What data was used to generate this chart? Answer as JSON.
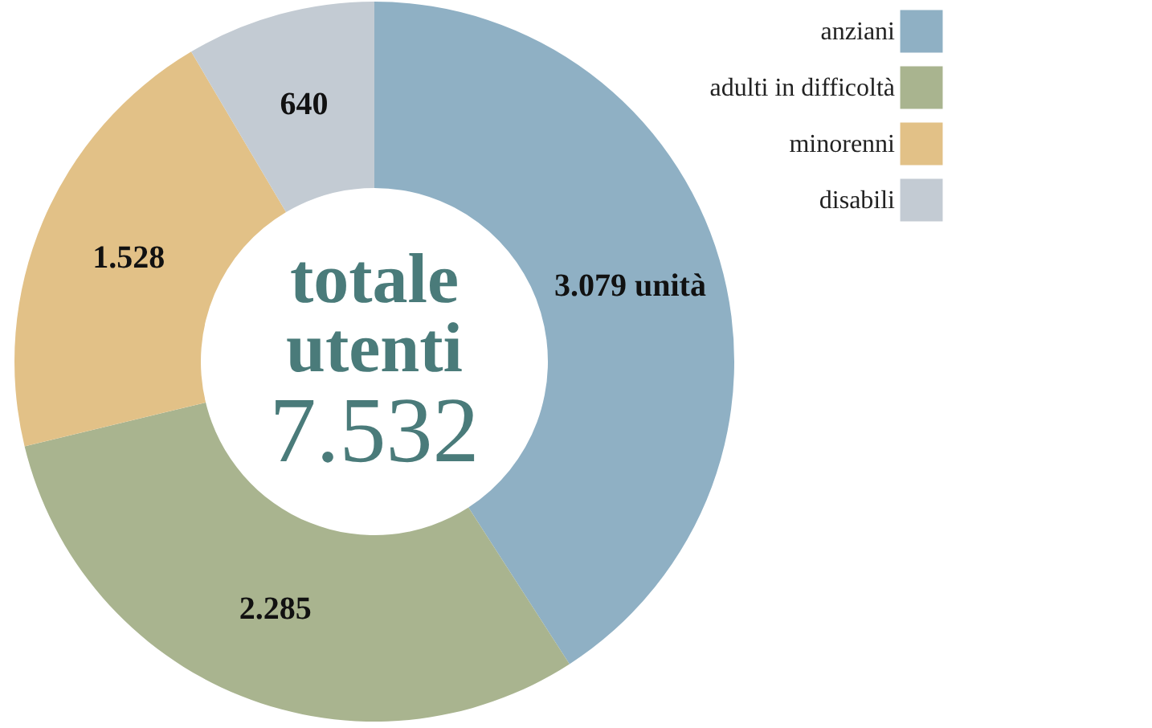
{
  "chart_data": {
    "type": "donut",
    "categories": [
      "anziani",
      "adulti in difficoltà",
      "minorenni",
      "disabili"
    ],
    "values": [
      3079,
      2285,
      1528,
      640
    ],
    "colors": [
      "#8fb0c4",
      "#a9b48f",
      "#e2c187",
      "#c3cbd3"
    ],
    "value_labels": [
      "3.079 unità",
      "2.285",
      "1.528",
      "640"
    ],
    "annotations": [
      "totale",
      "utenti",
      "7.532"
    ],
    "legend": "top right"
  }
}
